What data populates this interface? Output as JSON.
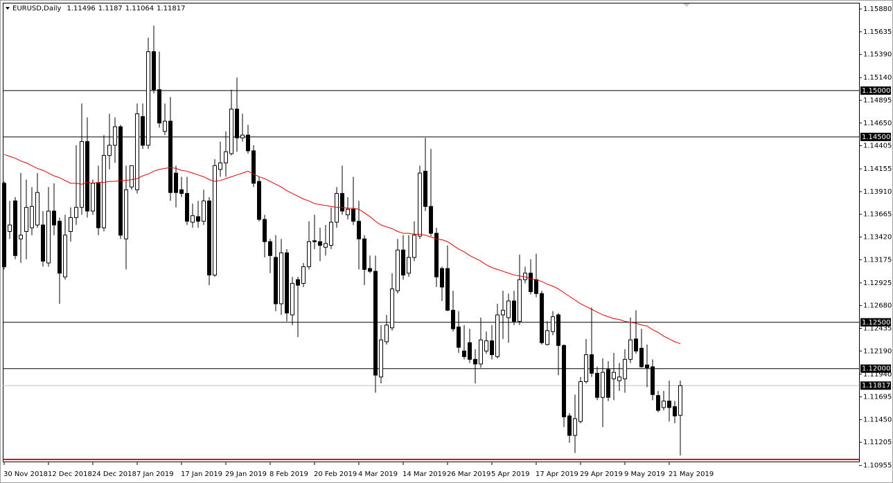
{
  "chart_data": {
    "type": "candlestick",
    "symbol": "EURUSD,Daily",
    "open": [
      1.14,
      1.1348,
      1.1381,
      1.134,
      1.1348,
      1.1352,
      1.1355,
      1.1355,
      1.1314,
      1.137,
      1.1359,
      1.1299,
      1.1348,
      1.1363,
      1.1374,
      1.1445,
      1.137,
      1.14,
      1.1352,
      1.143,
      1.1441,
      1.1461,
      1.134,
      1.1396,
      1.1393,
      1.1472,
      1.1441,
      1.1542,
      1.1501,
      1.1456,
      1.1467,
      1.1411,
      1.1393,
      1.1389,
      1.1358,
      1.1364,
      1.1359,
      1.1381,
      1.1301,
      1.1415,
      1.1422,
      1.1432,
      1.148,
      1.1449,
      1.1452,
      1.1435,
      1.1402,
      1.1361,
      1.1337,
      1.132,
      1.127,
      1.1325,
      1.1258,
      1.1296,
      1.1292,
      1.131,
      1.1338,
      1.1337,
      1.1331,
      1.1333,
      1.1358,
      1.1389,
      1.1366,
      1.1372,
      1.1359,
      1.134,
      1.1308,
      1.1305,
      1.1191,
      1.1229,
      1.1244,
      1.1284,
      1.1328,
      1.1303,
      1.132,
      1.1343,
      1.1413,
      1.1375,
      1.1346,
      1.1308,
      1.1308,
      1.1263,
      1.1245,
      1.1219,
      1.1228,
      1.121,
      1.1205,
      1.1219,
      1.123,
      1.1213,
      1.1258,
      1.1255,
      1.1273,
      1.1251,
      1.1296,
      1.1303,
      1.1296,
      1.1281,
      1.1226,
      1.124,
      1.1258,
      1.1225,
      1.1149,
      1.1128,
      1.1143,
      1.1186,
      1.1215,
      1.1195,
      1.1169,
      1.1199,
      1.1189,
      1.1187,
      1.1189,
      1.121,
      1.1232,
      1.1222,
      1.1204,
      1.1202,
      1.1171,
      1.1158,
      1.1165,
      1.1159,
      1.11496
    ],
    "high": [
      1.1402,
      1.1381,
      1.1385,
      1.1411,
      1.1404,
      1.1396,
      1.1411,
      1.137,
      1.1396,
      1.14,
      1.1363,
      1.1366,
      1.1374,
      1.1441,
      1.1486,
      1.1471,
      1.1404,
      1.1419,
      1.1452,
      1.1475,
      1.1471,
      1.1463,
      1.1419,
      1.1419,
      1.1486,
      1.1486,
      1.1557,
      1.157,
      1.1542,
      1.1486,
      1.1493,
      1.1419,
      1.1407,
      1.1407,
      1.1378,
      1.1381,
      1.1393,
      1.1385,
      1.1426,
      1.1445,
      1.1456,
      1.1501,
      1.1514,
      1.1475,
      1.1463,
      1.1441,
      1.1407,
      1.1366,
      1.134,
      1.1344,
      1.134,
      1.1329,
      1.1299,
      1.1299,
      1.1314,
      1.1359,
      1.1366,
      1.1352,
      1.1355,
      1.1374,
      1.1396,
      1.1419,
      1.1385,
      1.1407,
      1.1381,
      1.1344,
      1.1322,
      1.1322,
      1.1247,
      1.1258,
      1.1303,
      1.134,
      1.1344,
      1.1344,
      1.1359,
      1.1419,
      1.1449,
      1.1437,
      1.1352,
      1.131,
      1.1333,
      1.1284,
      1.1262,
      1.1247,
      1.1243,
      1.1221,
      1.1255,
      1.124,
      1.1247,
      1.127,
      1.1284,
      1.1281,
      1.1284,
      1.1323,
      1.131,
      1.1318,
      1.1324,
      1.1284,
      1.1251,
      1.1262,
      1.126,
      1.1226,
      1.1152,
      1.1172,
      1.1191,
      1.1232,
      1.1266,
      1.1202,
      1.1211,
      1.1208,
      1.1217,
      1.1206,
      1.1221,
      1.1255,
      1.1263,
      1.1243,
      1.1226,
      1.121,
      1.1176,
      1.1176,
      1.1187,
      1.1165,
      1.1187
    ],
    "low": [
      1.1307,
      1.134,
      1.1318,
      1.1314,
      1.1318,
      1.1344,
      1.1352,
      1.131,
      1.131,
      1.1344,
      1.127,
      1.1296,
      1.1337,
      1.1355,
      1.1366,
      1.1363,
      1.1366,
      1.1344,
      1.1348,
      1.1415,
      1.1422,
      1.134,
      1.1307,
      1.1393,
      1.1389,
      1.1437,
      1.1437,
      1.1497,
      1.146,
      1.1452,
      1.1381,
      1.1374,
      1.1385,
      1.1355,
      1.1352,
      1.1352,
      1.1355,
      1.129,
      1.1299,
      1.1407,
      1.1407,
      1.143,
      1.1434,
      1.1445,
      1.1432,
      1.1396,
      1.1359,
      1.132,
      1.1303,
      1.1262,
      1.1258,
      1.1251,
      1.1247,
      1.1234,
      1.1288,
      1.1307,
      1.1329,
      1.1316,
      1.1322,
      1.1329,
      1.1352,
      1.1366,
      1.1361,
      1.1355,
      1.1307,
      1.129,
      1.1303,
      1.1174,
      1.1184,
      1.1226,
      1.1241,
      1.1281,
      1.1296,
      1.1299,
      1.1316,
      1.134,
      1.137,
      1.1343,
      1.1288,
      1.1273,
      1.1262,
      1.124,
      1.1217,
      1.121,
      1.1206,
      1.1184,
      1.1201,
      1.1216,
      1.121,
      1.1211,
      1.1232,
      1.1228,
      1.1247,
      1.1247,
      1.1292,
      1.128,
      1.1277,
      1.1226,
      1.1225,
      1.1236,
      1.1193,
      1.1137,
      1.112,
      1.1109,
      1.1141,
      1.1184,
      1.1191,
      1.1166,
      1.1137,
      1.1165,
      1.1166,
      1.1176,
      1.1174,
      1.1206,
      1.1216,
      1.1201,
      1.118,
      1.1166,
      1.1153,
      1.1155,
      1.1143,
      1.1141,
      1.11064
    ],
    "close": [
      1.131,
      1.1355,
      1.1322,
      1.1344,
      1.1374,
      1.1375,
      1.139,
      1.1316,
      1.137,
      1.1355,
      1.1303,
      1.1344,
      1.1363,
      1.1374,
      1.1445,
      1.137,
      1.14,
      1.1352,
      1.143,
      1.1441,
      1.1461,
      1.1344,
      1.1393,
      1.1419,
      1.1475,
      1.1441,
      1.1542,
      1.1501,
      1.1465,
      1.1467,
      1.139,
      1.139,
      1.1389,
      1.1359,
      1.1365,
      1.1359,
      1.1381,
      1.1301,
      1.1419,
      1.1422,
      1.1434,
      1.148,
      1.1449,
      1.1452,
      1.1435,
      1.14,
      1.1361,
      1.1337,
      1.1322,
      1.127,
      1.1325,
      1.126,
      1.1292,
      1.129,
      1.131,
      1.1337,
      1.1337,
      1.1333,
      1.1335,
      1.1358,
      1.1389,
      1.137,
      1.1372,
      1.1359,
      1.134,
      1.1307,
      1.1305,
      1.1193,
      1.1231,
      1.1247,
      1.1286,
      1.1328,
      1.1301,
      1.132,
      1.1344,
      1.1411,
      1.1375,
      1.1346,
      1.1299,
      1.1288,
      1.1263,
      1.1243,
      1.1223,
      1.1213,
      1.121,
      1.1205,
      1.1231,
      1.123,
      1.1215,
      1.1258,
      1.1263,
      1.1273,
      1.1251,
      1.1296,
      1.1303,
      1.1283,
      1.1281,
      1.1228,
      1.1241,
      1.1256,
      1.1225,
      1.1148,
      1.1128,
      1.1146,
      1.1186,
      1.1215,
      1.1195,
      1.1169,
      1.1196,
      1.1169,
      1.1196,
      1.1191,
      1.121,
      1.1231,
      1.1219,
      1.1202,
      1.1201,
      1.1172,
      1.1155,
      1.1165,
      1.1158,
      1.1149,
      1.11817
    ],
    "ma": [
      1.1431,
      1.1429,
      1.1427,
      1.1424,
      1.1422,
      1.1419,
      1.1416,
      1.1414,
      1.1411,
      1.1408,
      1.1406,
      1.1403,
      1.14,
      1.14,
      1.1399,
      1.1401,
      1.14,
      1.1401,
      1.1401,
      1.1402,
      1.1402,
      1.1403,
      1.1403,
      1.1404,
      1.1405,
      1.1408,
      1.141,
      1.1413,
      1.1415,
      1.1416,
      1.1417,
      1.1416,
      1.1414,
      1.1413,
      1.1411,
      1.1409,
      1.1407,
      1.1404,
      1.1402,
      1.1403,
      1.1405,
      1.1407,
      1.1409,
      1.1411,
      1.1413,
      1.141,
      1.1407,
      1.1405,
      1.1402,
      1.1399,
      1.1396,
      1.1392,
      1.1389,
      1.1386,
      1.1383,
      1.1381,
      1.1378,
      1.1377,
      1.1376,
      1.1375,
      1.1374,
      1.1374,
      1.1373,
      1.1373,
      1.1372,
      1.1368,
      1.1364,
      1.1359,
      1.1355,
      1.1353,
      1.1351,
      1.1348,
      1.1346,
      1.1346,
      1.1345,
      1.1345,
      1.1344,
      1.1342,
      1.134,
      1.1339,
      1.1337,
      1.1333,
      1.1329,
      1.1326,
      1.1322,
      1.1319,
      1.1316,
      1.1312,
      1.1309,
      1.1307,
      1.1305,
      1.1303,
      1.1301,
      1.13,
      1.1299,
      1.1297,
      1.1296,
      1.1294,
      1.1291,
      1.1289,
      1.1286,
      1.1282,
      1.1278,
      1.1274,
      1.127,
      1.1267,
      1.1264,
      1.1261,
      1.1258,
      1.1256,
      1.1254,
      1.1253,
      1.1251,
      1.125,
      1.1249,
      1.1247,
      1.1246,
      1.1242,
      1.1239,
      1.1235,
      1.1232,
      1.1229,
      1.1227
    ],
    "categories": [
      "30 Nov 2018",
      null,
      null,
      null,
      null,
      null,
      null,
      null,
      "12 Dec 2018",
      null,
      null,
      null,
      null,
      null,
      null,
      null,
      "24 Dec 2018",
      null,
      null,
      null,
      null,
      null,
      null,
      null,
      "7 Jan 2019",
      null,
      null,
      null,
      null,
      null,
      null,
      null,
      "17 Jan 2019",
      null,
      null,
      null,
      null,
      null,
      null,
      null,
      "29 Jan 2019",
      null,
      null,
      null,
      null,
      null,
      null,
      null,
      "8 Feb 2019",
      null,
      null,
      null,
      null,
      null,
      null,
      null,
      "20 Feb 2019",
      null,
      null,
      null,
      null,
      null,
      null,
      null,
      "4 Mar 2019",
      null,
      null,
      null,
      null,
      null,
      null,
      null,
      "14 Mar 2019",
      null,
      null,
      null,
      null,
      null,
      null,
      null,
      "26 Mar 2019",
      null,
      null,
      null,
      null,
      null,
      null,
      null,
      "5 Apr 2019",
      null,
      null,
      null,
      null,
      null,
      null,
      null,
      "17 Apr 2019",
      null,
      null,
      null,
      null,
      null,
      null,
      null,
      "29 Apr 2019",
      null,
      null,
      null,
      null,
      null,
      null,
      null,
      "9 May 2019",
      null,
      null,
      null,
      null,
      null,
      null,
      null,
      "21 May 2019",
      null,
      null
    ],
    "ylim": [
      1.1099,
      1.1594
    ],
    "yticks": [
      {
        "value": 1.1588,
        "label": "1.15880"
      },
      {
        "value": 1.15635,
        "label": "1.15635"
      },
      {
        "value": 1.1539,
        "label": "1.15390"
      },
      {
        "value": 1.1514,
        "label": "1.15140"
      },
      {
        "value": 1.14895,
        "label": "1.14895"
      },
      {
        "value": 1.1465,
        "label": "1.14650"
      },
      {
        "value": 1.14405,
        "label": "1.14405"
      },
      {
        "value": 1.14155,
        "label": "1.14155"
      },
      {
        "value": 1.1391,
        "label": "1.13910"
      },
      {
        "value": 1.13665,
        "label": "1.13665"
      },
      {
        "value": 1.1342,
        "label": "1.13420"
      },
      {
        "value": 1.13175,
        "label": "1.13175"
      },
      {
        "value": 1.12925,
        "label": "1.12925"
      },
      {
        "value": 1.1268,
        "label": "1.12680"
      },
      {
        "value": 1.12435,
        "label": "1.12435"
      },
      {
        "value": 1.1219,
        "label": "1.12190"
      },
      {
        "value": 1.1194,
        "label": "1.11940"
      },
      {
        "value": 1.11695,
        "label": "1.11695"
      },
      {
        "value": 1.1145,
        "label": "1.11450"
      },
      {
        "value": 1.11205,
        "label": "1.11205"
      },
      {
        "value": 1.10955,
        "label": "1.10955"
      }
    ],
    "levels": [
      {
        "value": 1.15,
        "label": "1.15000"
      },
      {
        "value": 1.145,
        "label": "1.14500"
      },
      {
        "value": 1.125,
        "label": "1.12500"
      },
      {
        "value": 1.12,
        "label": "1.12000"
      }
    ],
    "red_level": 1.1102,
    "up_color": "#ffffff",
    "down_color": "#000000",
    "ma_color": "#e00000",
    "level_color": "#000000",
    "red_level_color": "#e00000",
    "price_line_color": "#c0c0c0"
  }
}
